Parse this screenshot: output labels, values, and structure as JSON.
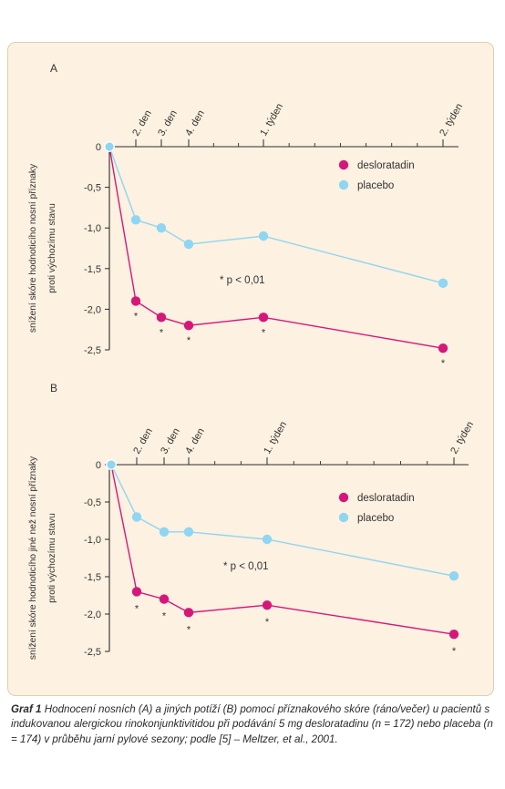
{
  "colors": {
    "desloratadin": "#d6177a",
    "placebo": "#8fd6f2",
    "axis": "#2b2b2b",
    "panel_background": "#fdf1e1"
  },
  "chart_data": [
    {
      "type": "line",
      "panel_label": "A",
      "ylabel_lines": [
        "snížení skóre hodnoticího nosní příznaky",
        "proti výchozímu stavu"
      ],
      "ylim": [
        -2.5,
        0
      ],
      "yticks": [
        0,
        -0.5,
        -1.0,
        -1.5,
        -2.0,
        -2.5
      ],
      "ytick_labels": [
        "0",
        "-0,5",
        "-1,0",
        "-1,5",
        "-2,0",
        "-2,5"
      ],
      "xticks": [
        {
          "label": "2. den",
          "day": 2
        },
        {
          "label": "3. den",
          "day": 3
        },
        {
          "label": "4. den",
          "day": 4
        },
        {
          "label": "1. týden",
          "day": 7
        },
        {
          "label": "2. týden",
          "day": 14
        }
      ],
      "legend_position": "top-right",
      "annotation": "* p < 0,01",
      "series": [
        {
          "name": "desloratadin",
          "color_key": "desloratadin",
          "points": [
            [
              1,
              0
            ],
            [
              2,
              -1.9
            ],
            [
              3,
              -2.1
            ],
            [
              4,
              -2.2
            ],
            [
              7,
              -2.1
            ],
            [
              14,
              -2.48
            ]
          ],
          "significance": [
            "",
            "*",
            "*",
            "*",
            "*",
            "*"
          ]
        },
        {
          "name": "placebo",
          "color_key": "placebo",
          "points": [
            [
              1,
              0
            ],
            [
              2,
              -0.9
            ],
            [
              3,
              -1.0
            ],
            [
              4,
              -1.2
            ],
            [
              7,
              -1.1
            ],
            [
              14,
              -1.68
            ]
          ]
        }
      ]
    },
    {
      "type": "line",
      "panel_label": "B",
      "ylabel_lines": [
        "snížení skóre hodnoticího jiné než nosní příznaky",
        "proti výchozímu stavu"
      ],
      "ylim": [
        -2.5,
        0
      ],
      "yticks": [
        0,
        -0.5,
        -1.0,
        -1.5,
        -2.0,
        -2.5
      ],
      "ytick_labels": [
        "0",
        "-0,5",
        "-1,0",
        "-1,5",
        "-2,0",
        "-2,5"
      ],
      "xticks": [
        {
          "label": "2. den",
          "day": 2
        },
        {
          "label": "3. den",
          "day": 3
        },
        {
          "label": "4. den",
          "day": 4
        },
        {
          "label": "1. týden",
          "day": 7
        },
        {
          "label": "2. týden",
          "day": 14
        }
      ],
      "legend_position": "top-right",
      "annotation": "* p < 0,01",
      "series": [
        {
          "name": "desloratadin",
          "color_key": "desloratadin",
          "points": [
            [
              1,
              0
            ],
            [
              2,
              -1.7
            ],
            [
              3,
              -1.8
            ],
            [
              4,
              -1.98
            ],
            [
              7,
              -1.88
            ],
            [
              14,
              -2.27
            ]
          ],
          "significance": [
            "",
            "*",
            "*",
            "*",
            "*",
            "*"
          ]
        },
        {
          "name": "placebo",
          "color_key": "placebo",
          "points": [
            [
              1,
              0
            ],
            [
              2,
              -0.7
            ],
            [
              3,
              -0.9
            ],
            [
              4,
              -0.9
            ],
            [
              7,
              -1.0
            ],
            [
              14,
              -1.49
            ]
          ]
        }
      ]
    }
  ],
  "caption": {
    "label": "Graf 1",
    "text": "Hodnocení nosních (A) a jiných potíží (B) pomocí příznakového skóre (ráno/večer) u pacientů s indukovanou alergickou rinokonjunktivitidou při podávání 5 mg desloratadinu (n = 172) nebo placeba (n = 174) v průběhu jarní pylové sezony; podle [5] – Meltzer, et al., 2001."
  }
}
